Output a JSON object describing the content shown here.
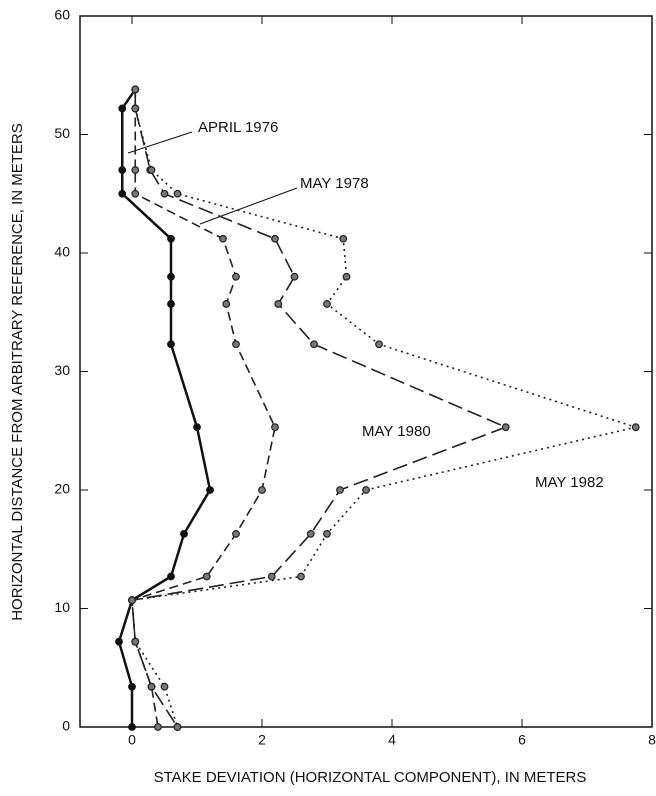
{
  "chart_data": {
    "type": "line",
    "xlabel": "STAKE DEVIATION (HORIZONTAL COMPONENT), IN METERS",
    "ylabel": "HORIZONTAL DISTANCE FROM ARBITRARY REFERENCE, IN METERS",
    "xlim": [
      -0.8,
      8
    ],
    "xticks": [
      0,
      2,
      4,
      6,
      8
    ],
    "ylim": [
      0,
      60
    ],
    "yticks": [
      0,
      10,
      20,
      30,
      40,
      50,
      60
    ],
    "series": [
      {
        "name": "APRIL 1976",
        "color": "#111111",
        "linestyle": "solid",
        "x": [
          0.05,
          -0.15,
          -0.15,
          -0.15,
          0.6,
          0.6,
          0.6,
          0.6,
          1.0,
          1.2,
          0.8,
          0.6,
          0,
          -0.2,
          0,
          0
        ],
        "values": [
          53.8,
          52.2,
          47,
          45,
          41.2,
          38,
          35.7,
          32.3,
          25.3,
          20,
          16.3,
          12.7,
          10.7,
          7.2,
          3.4,
          0
        ]
      },
      {
        "name": "MAY 1978",
        "color": "#222222",
        "linestyle": "dashed",
        "x": [
          0.05,
          0.05,
          0.05,
          0.05,
          1.4,
          1.6,
          1.45,
          1.6,
          2.2,
          2.0,
          1.6,
          1.15,
          0,
          0.05,
          0.3,
          0.4
        ],
        "values": [
          53.8,
          52.2,
          47,
          45,
          41.2,
          38,
          35.7,
          32.3,
          25.3,
          20,
          16.3,
          12.7,
          10.7,
          7.2,
          3.4,
          0
        ]
      },
      {
        "name": "MAY 1980",
        "color": "#222222",
        "linestyle": "longdash",
        "x": [
          0.05,
          0.05,
          0.28,
          0.5,
          2.2,
          2.5,
          2.25,
          2.8,
          5.75,
          3.2,
          2.75,
          2.15,
          0,
          0.05,
          0.3,
          0.7
        ],
        "values": [
          53.8,
          52.2,
          47,
          45,
          41.2,
          38,
          35.7,
          32.3,
          25.3,
          20,
          16.3,
          12.7,
          10.7,
          7.2,
          3.4,
          0
        ]
      },
      {
        "name": "MAY 1982",
        "color": "#222222",
        "linestyle": "dotted",
        "x": [
          0.05,
          0.05,
          0.3,
          0.7,
          3.25,
          3.3,
          3.0,
          3.8,
          7.75,
          3.6,
          3.0,
          2.6,
          0,
          0.05,
          0.5,
          0.7
        ],
        "values": [
          53.8,
          52.2,
          47,
          45,
          41.2,
          38,
          35.7,
          32.3,
          25.3,
          20,
          16.3,
          12.7,
          10.7,
          7.2,
          3.4,
          0
        ]
      }
    ]
  }
}
